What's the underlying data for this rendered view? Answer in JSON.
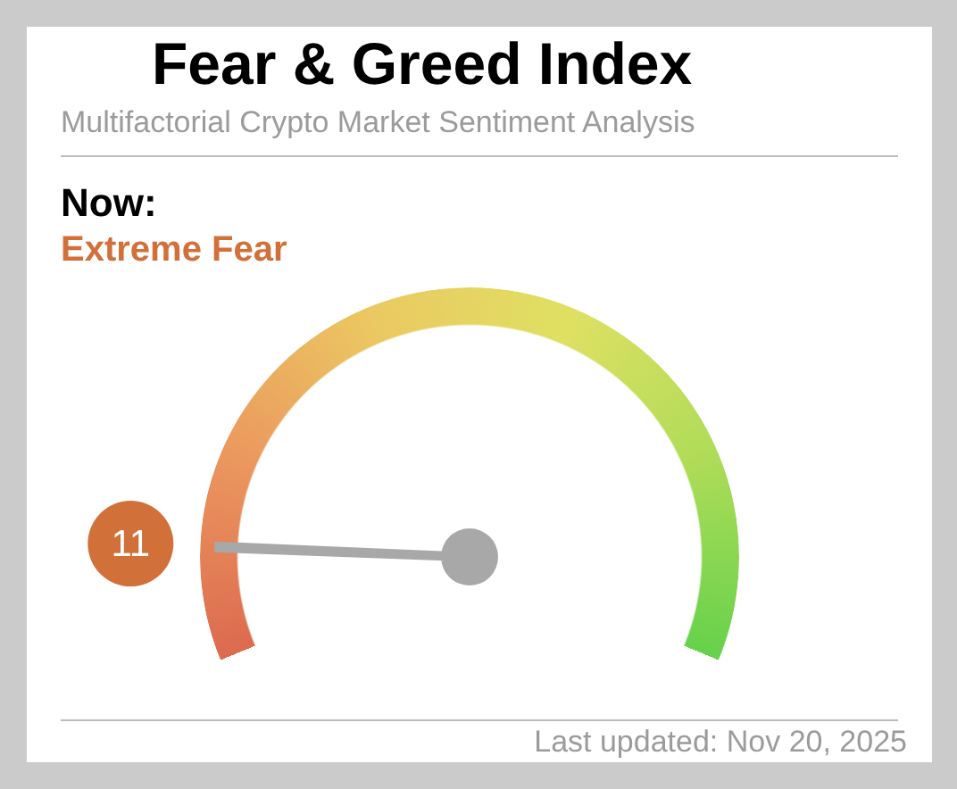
{
  "chart_data": {
    "type": "other",
    "title": "Fear & Greed Index",
    "subtitle": "Multifactorial Crypto Market Sentiment Analysis",
    "annotations": [
      "Now:",
      "Extreme Fear",
      "Last updated: Nov 20, 2025"
    ],
    "values": [
      11
    ],
    "data_labels": true,
    "color": "#d2703a"
  }
}
